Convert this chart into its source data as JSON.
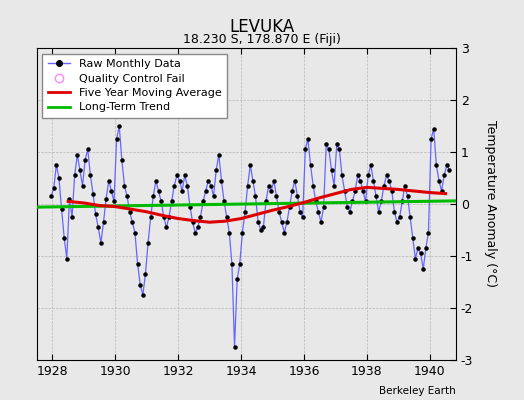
{
  "title": "LEVUKA",
  "subtitle": "18.230 S, 178.870 E (Fiji)",
  "ylabel": "Temperature Anomaly (°C)",
  "credit": "Berkeley Earth",
  "ylim": [
    -3,
    3
  ],
  "xlim": [
    1927.5,
    1940.83
  ],
  "xticks": [
    1928,
    1930,
    1932,
    1934,
    1936,
    1938,
    1940
  ],
  "yticks": [
    -3,
    -2,
    -1,
    0,
    1,
    2,
    3
  ],
  "background_color": "#e8e8e8",
  "raw_line_color": "#6666ff",
  "raw_dot_color": "#000000",
  "ma_color": "#dd0000",
  "trend_color": "#00bb00",
  "qc_color": "#ff88ff",
  "raw_data": {
    "times": [
      1927.958,
      1928.042,
      1928.125,
      1928.208,
      1928.292,
      1928.375,
      1928.458,
      1928.542,
      1928.625,
      1928.708,
      1928.792,
      1928.875,
      1928.958,
      1929.042,
      1929.125,
      1929.208,
      1929.292,
      1929.375,
      1929.458,
      1929.542,
      1929.625,
      1929.708,
      1929.792,
      1929.875,
      1929.958,
      1930.042,
      1930.125,
      1930.208,
      1930.292,
      1930.375,
      1930.458,
      1930.542,
      1930.625,
      1930.708,
      1930.792,
      1930.875,
      1930.958,
      1931.042,
      1931.125,
      1931.208,
      1931.292,
      1931.375,
      1931.458,
      1931.542,
      1931.625,
      1931.708,
      1931.792,
      1931.875,
      1931.958,
      1932.042,
      1932.125,
      1932.208,
      1932.292,
      1932.375,
      1932.458,
      1932.542,
      1932.625,
      1932.708,
      1932.792,
      1932.875,
      1932.958,
      1933.042,
      1933.125,
      1933.208,
      1933.292,
      1933.375,
      1933.458,
      1933.542,
      1933.625,
      1933.708,
      1933.792,
      1933.875,
      1933.958,
      1934.042,
      1934.125,
      1934.208,
      1934.292,
      1934.375,
      1934.458,
      1934.542,
      1934.625,
      1934.708,
      1934.792,
      1934.875,
      1934.958,
      1935.042,
      1935.125,
      1935.208,
      1935.292,
      1935.375,
      1935.458,
      1935.542,
      1935.625,
      1935.708,
      1935.792,
      1935.875,
      1935.958,
      1936.042,
      1936.125,
      1936.208,
      1936.292,
      1936.375,
      1936.458,
      1936.542,
      1936.625,
      1936.708,
      1936.792,
      1936.875,
      1936.958,
      1937.042,
      1937.125,
      1937.208,
      1937.292,
      1937.375,
      1937.458,
      1937.542,
      1937.625,
      1937.708,
      1937.792,
      1937.875,
      1937.958,
      1938.042,
      1938.125,
      1938.208,
      1938.292,
      1938.375,
      1938.458,
      1938.542,
      1938.625,
      1938.708,
      1938.792,
      1938.875,
      1938.958,
      1939.042,
      1939.125,
      1939.208,
      1939.292,
      1939.375,
      1939.458,
      1939.542,
      1939.625,
      1939.708,
      1939.792,
      1939.875,
      1939.958,
      1940.042,
      1940.125,
      1940.208,
      1940.292,
      1940.375,
      1940.458,
      1940.542,
      1940.625
    ],
    "values": [
      0.15,
      0.3,
      0.75,
      0.5,
      -0.1,
      -0.65,
      -1.05,
      0.1,
      -0.25,
      0.55,
      0.95,
      0.65,
      0.35,
      0.85,
      1.05,
      0.55,
      0.2,
      -0.2,
      -0.45,
      -0.75,
      -0.35,
      0.1,
      0.45,
      0.25,
      0.05,
      1.25,
      1.5,
      0.85,
      0.35,
      0.15,
      -0.15,
      -0.35,
      -0.55,
      -1.15,
      -1.55,
      -1.75,
      -1.35,
      -0.75,
      -0.25,
      0.15,
      0.45,
      0.25,
      0.05,
      -0.25,
      -0.45,
      -0.25,
      0.05,
      0.35,
      0.55,
      0.45,
      0.25,
      0.55,
      0.35,
      -0.05,
      -0.35,
      -0.55,
      -0.45,
      -0.25,
      0.05,
      0.25,
      0.45,
      0.35,
      0.15,
      0.65,
      0.95,
      0.45,
      0.05,
      -0.25,
      -0.55,
      -1.15,
      -2.75,
      -1.45,
      -1.15,
      -0.55,
      -0.15,
      0.35,
      0.75,
      0.45,
      0.15,
      -0.35,
      -0.5,
      -0.45,
      0.05,
      0.35,
      0.25,
      0.45,
      0.15,
      -0.15,
      -0.35,
      -0.55,
      -0.35,
      -0.05,
      0.25,
      0.45,
      0.15,
      -0.15,
      -0.25,
      1.05,
      1.25,
      0.75,
      0.35,
      0.05,
      -0.15,
      -0.35,
      -0.05,
      1.15,
      1.05,
      0.65,
      0.35,
      1.15,
      1.05,
      0.55,
      0.25,
      -0.05,
      -0.15,
      0.05,
      0.25,
      0.55,
      0.45,
      0.25,
      0.05,
      0.55,
      0.75,
      0.45,
      0.15,
      -0.15,
      0.05,
      0.35,
      0.55,
      0.45,
      0.25,
      -0.15,
      -0.35,
      -0.25,
      0.05,
      0.35,
      0.15,
      -0.25,
      -0.65,
      -1.05,
      -0.85,
      -0.95,
      -1.25,
      -0.85,
      -0.55,
      1.25,
      1.45,
      0.75,
      0.45,
      0.25,
      0.55,
      0.75,
      0.65
    ]
  },
  "moving_avg": {
    "times": [
      1928.5,
      1929.0,
      1929.5,
      1930.0,
      1930.5,
      1931.0,
      1931.5,
      1932.0,
      1932.5,
      1933.0,
      1933.5,
      1934.0,
      1934.5,
      1935.0,
      1935.5,
      1936.0,
      1936.5,
      1937.0,
      1937.5,
      1938.0,
      1938.5,
      1939.0,
      1939.5,
      1940.0,
      1940.5
    ],
    "values": [
      0.05,
      0.02,
      -0.03,
      -0.05,
      -0.1,
      -0.15,
      -0.22,
      -0.28,
      -0.32,
      -0.35,
      -0.33,
      -0.28,
      -0.2,
      -0.12,
      -0.05,
      0.03,
      0.12,
      0.2,
      0.28,
      0.32,
      0.3,
      0.28,
      0.25,
      0.22,
      0.2
    ]
  },
  "trend": {
    "times": [
      1927.5,
      1940.83
    ],
    "values": [
      -0.06,
      0.06
    ]
  },
  "legend_items": [
    {
      "label": "Raw Monthly Data",
      "color": "#6666ff",
      "type": "line_dot"
    },
    {
      "label": "Quality Control Fail",
      "color": "#ff88ff",
      "type": "circle_open"
    },
    {
      "label": "Five Year Moving Average",
      "color": "#dd0000",
      "type": "line"
    },
    {
      "label": "Long-Term Trend",
      "color": "#00bb00",
      "type": "line"
    }
  ]
}
